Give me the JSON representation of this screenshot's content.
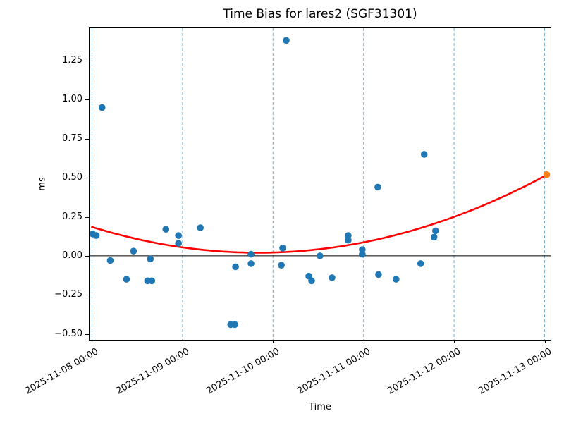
{
  "chart_data": {
    "type": "scatter",
    "title": "Time Bias for lares2 (SGF31301)",
    "xlabel": "Time",
    "ylabel": "ms",
    "x_axis_epoch": "2025-11-08 00:00",
    "xlim_days": [
      -0.027,
      5.066
    ],
    "ylim": [
      -0.538,
      1.458
    ],
    "grid": {
      "vertical_day_lines": true,
      "line_style": "dashed",
      "color": "#78add2"
    },
    "zero_line": {
      "value": 0.0,
      "color": "#000000"
    },
    "x_ticks": [
      {
        "t": 0,
        "label": "2025-11-08 00:00"
      },
      {
        "t": 1,
        "label": "2025-11-09 00:00"
      },
      {
        "t": 2,
        "label": "2025-11-10 00:00"
      },
      {
        "t": 3,
        "label": "2025-11-11 00:00"
      },
      {
        "t": 4,
        "label": "2025-11-12 00:00"
      },
      {
        "t": 5,
        "label": "2025-11-13 00:00"
      }
    ],
    "y_ticks": [
      {
        "v": 1.25,
        "label": "1.25"
      },
      {
        "v": 1.0,
        "label": "1.00"
      },
      {
        "v": 0.75,
        "label": "0.75"
      },
      {
        "v": 0.5,
        "label": "0.50"
      },
      {
        "v": 0.25,
        "label": "0.25"
      },
      {
        "v": 0.0,
        "label": "0.00"
      },
      {
        "v": -0.25,
        "label": "−0.25"
      },
      {
        "v": -0.5,
        "label": "−0.50"
      }
    ],
    "series": [
      {
        "name": "time-bias-observations",
        "color": "#1f77b4",
        "marker": "circle",
        "points": [
          {
            "time": "2025-11-08 00:11",
            "t": 0.008,
            "ms": 0.14
          },
          {
            "time": "2025-11-08 01:07",
            "t": 0.047,
            "ms": 0.13
          },
          {
            "time": "2025-11-08 02:40",
            "t": 0.111,
            "ms": 0.95
          },
          {
            "time": "2025-11-08 04:51",
            "t": 0.202,
            "ms": -0.03
          },
          {
            "time": "2025-11-08 09:09",
            "t": 0.381,
            "ms": -0.15
          },
          {
            "time": "2025-11-08 11:01",
            "t": 0.459,
            "ms": 0.03
          },
          {
            "time": "2025-11-08 14:44",
            "t": 0.614,
            "ms": -0.16
          },
          {
            "time": "2025-11-08 15:29",
            "t": 0.645,
            "ms": -0.02
          },
          {
            "time": "2025-11-08 15:52",
            "t": 0.661,
            "ms": -0.16
          },
          {
            "time": "2025-11-08 19:35",
            "t": 0.816,
            "ms": 0.17
          },
          {
            "time": "2025-11-08 22:57",
            "t": 0.956,
            "ms": 0.13
          },
          {
            "time": "2025-11-08 22:57",
            "t": 0.956,
            "ms": 0.08
          },
          {
            "time": "2025-11-09 04:44",
            "t": 1.197,
            "ms": 0.18
          },
          {
            "time": "2025-11-09 12:46",
            "t": 1.532,
            "ms": -0.44
          },
          {
            "time": "2025-11-09 13:53",
            "t": 1.578,
            "ms": -0.44
          },
          {
            "time": "2025-11-09 14:04",
            "t": 1.586,
            "ms": -0.07
          },
          {
            "time": "2025-11-09 18:10",
            "t": 1.757,
            "ms": 0.01
          },
          {
            "time": "2025-11-09 18:10",
            "t": 1.757,
            "ms": -0.05
          },
          {
            "time": "2025-11-10 02:12",
            "t": 2.092,
            "ms": -0.06
          },
          {
            "time": "2025-11-10 02:34",
            "t": 2.107,
            "ms": 0.05
          },
          {
            "time": "2025-11-10 03:30",
            "t": 2.146,
            "ms": 1.38
          },
          {
            "time": "2025-11-10 09:29",
            "t": 2.395,
            "ms": -0.13
          },
          {
            "time": "2025-11-10 10:13",
            "t": 2.426,
            "ms": -0.16
          },
          {
            "time": "2025-11-10 12:28",
            "t": 2.519,
            "ms": 0.0
          },
          {
            "time": "2025-11-10 15:38",
            "t": 2.652,
            "ms": -0.14
          },
          {
            "time": "2025-11-10 19:56",
            "t": 2.83,
            "ms": 0.13
          },
          {
            "time": "2025-11-10 19:56",
            "t": 2.83,
            "ms": 0.1
          },
          {
            "time": "2025-11-10 23:40",
            "t": 2.986,
            "ms": 0.04
          },
          {
            "time": "2025-11-10 23:40",
            "t": 2.986,
            "ms": 0.01
          },
          {
            "time": "2025-11-11 03:46",
            "t": 3.157,
            "ms": 0.44
          },
          {
            "time": "2025-11-11 03:57",
            "t": 3.165,
            "ms": -0.12
          },
          {
            "time": "2025-11-11 08:37",
            "t": 3.359,
            "ms": -0.15
          },
          {
            "time": "2025-11-11 15:09",
            "t": 3.631,
            "ms": -0.05
          },
          {
            "time": "2025-11-11 16:05",
            "t": 3.67,
            "ms": 0.65
          },
          {
            "time": "2025-11-11 18:42",
            "t": 3.779,
            "ms": 0.12
          },
          {
            "time": "2025-11-11 19:04",
            "t": 3.795,
            "ms": 0.16
          }
        ]
      },
      {
        "name": "predicted-point",
        "color": "#ff7f0e",
        "marker": "circle",
        "points": [
          {
            "time": "2025-11-13 00:33",
            "t": 5.023,
            "ms": 0.52
          }
        ]
      }
    ],
    "fit_curve": {
      "name": "quadratic-fit",
      "color": "#ff0000",
      "shape": "parabola",
      "a_ms_per_day2": 0.049,
      "t_vertex_days": 1.835,
      "ms_vertex": 0.02,
      "t_start": -0.008,
      "t_end": 5.023
    }
  }
}
